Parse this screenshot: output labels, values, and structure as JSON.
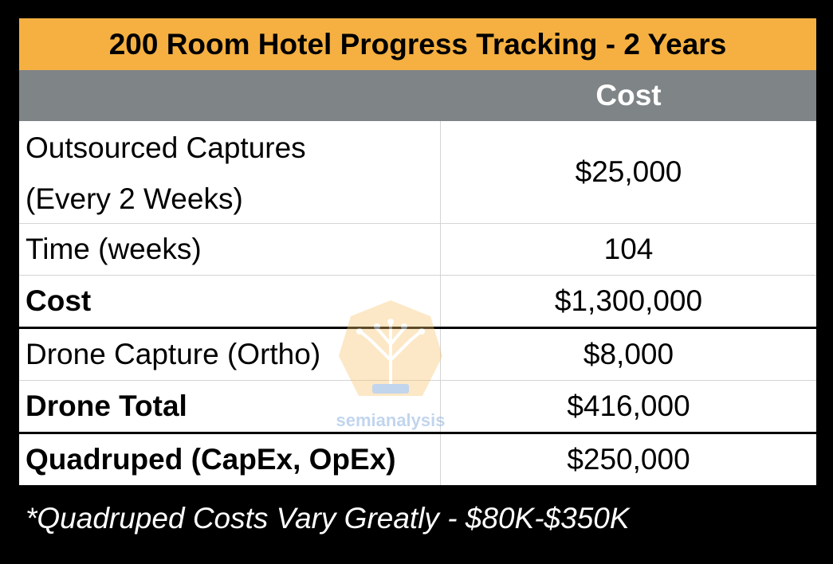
{
  "table": {
    "title": "200 Room Hotel Progress Tracking - 2 Years",
    "header_cost": "Cost",
    "rows": [
      {
        "label_line1": "Outsourced Captures",
        "label_line2": "(Every 2 Weeks)",
        "value": "$25,000"
      },
      {
        "label": "Time (weeks)",
        "value": "104"
      },
      {
        "label": "Cost",
        "value": "$1,300,000"
      },
      {
        "label": "Drone Capture (Ortho)",
        "value": "$8,000"
      },
      {
        "label": "Drone Total",
        "value": "$416,000"
      },
      {
        "label": "Quadruped (CapEx, OpEx)",
        "value": "$250,000"
      }
    ]
  },
  "footnote": "*Quadruped Costs Vary Greatly - $80K-$350K",
  "watermark": {
    "text": "semianalysis",
    "icon": "tree-circuit-icon"
  },
  "colors": {
    "title_bg": "#F5B041",
    "header_bg": "#7F8487",
    "background": "#000000"
  }
}
